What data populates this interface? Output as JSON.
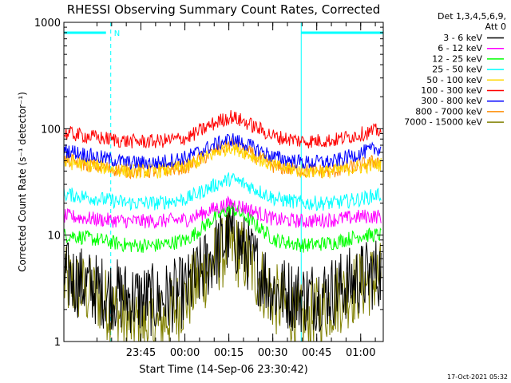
{
  "chart_data": {
    "type": "line",
    "title": "RHESSI Observing Summary Count Rates, Corrected",
    "xlabel": "Start Time (14-Sep-06 23:30:42)",
    "ylabel": "Corrected Count Rate (s⁻¹ detector⁻¹)",
    "y_scale": "log",
    "ylim": [
      1,
      1000
    ],
    "xlim_minutes": [
      -12,
      97
    ],
    "x_ticks": [
      {
        "label": "23:45",
        "minutes": 14.3
      },
      {
        "label": "00:00",
        "minutes": 29.3
      },
      {
        "label": "00:15",
        "minutes": 44.3
      },
      {
        "label": "00:30",
        "minutes": 59.3
      },
      {
        "label": "00:45",
        "minutes": 74.3
      },
      {
        "label": "01:00",
        "minutes": 89.3
      }
    ],
    "y_ticks": [
      {
        "label": "1",
        "value": 1
      },
      {
        "label": "10",
        "value": 10
      },
      {
        "label": "100",
        "value": 100
      },
      {
        "label": "1000",
        "value": 1000
      }
    ],
    "legend_header": [
      "Det 1,3,4,5,6,9,",
      "Att 0"
    ],
    "legend_position": "right",
    "night_markers": [
      {
        "label": "N",
        "start_minutes": -12,
        "end_minutes": 4
      },
      {
        "label": "",
        "start_minutes": 69,
        "end_minutes": 97
      }
    ],
    "vertical_lines_minutes": [
      -12,
      4,
      69,
      97
    ],
    "series": [
      {
        "name": "3 - 6 keV",
        "color": "#000000",
        "x": [
          -10,
          0,
          10,
          20,
          30,
          40,
          45,
          50,
          60,
          70,
          80,
          90,
          95
        ],
        "y": [
          4,
          3,
          2.6,
          2.4,
          3,
          7,
          10,
          7,
          3,
          2.6,
          3,
          4,
          4.5
        ]
      },
      {
        "name": "6 - 12 keV",
        "color": "#ff00ff",
        "x": [
          -10,
          0,
          10,
          20,
          30,
          40,
          45,
          50,
          60,
          70,
          80,
          90,
          95
        ],
        "y": [
          15,
          14,
          13.5,
          13.5,
          14,
          18,
          20,
          18,
          14,
          13.5,
          14,
          15,
          15
        ]
      },
      {
        "name": "12 - 25 keV",
        "color": "#00ff00",
        "x": [
          -10,
          0,
          10,
          20,
          30,
          40,
          45,
          50,
          60,
          70,
          80,
          90,
          95
        ],
        "y": [
          10,
          9,
          8,
          8,
          9,
          15,
          18,
          15,
          9,
          8,
          8.5,
          10,
          10
        ]
      },
      {
        "name": "25 - 50 keV",
        "color": "#00ffff",
        "x": [
          -10,
          0,
          10,
          20,
          30,
          40,
          45,
          50,
          60,
          70,
          80,
          90,
          95
        ],
        "y": [
          24,
          22,
          20,
          20,
          22,
          30,
          34,
          30,
          22,
          20,
          20,
          22,
          24
        ]
      },
      {
        "name": "50 - 100 keV",
        "color": "#ffd700",
        "x": [
          -10,
          0,
          10,
          20,
          30,
          40,
          45,
          50,
          60,
          70,
          80,
          90,
          95
        ],
        "y": [
          48,
          44,
          40,
          40,
          44,
          60,
          68,
          60,
          44,
          40,
          40,
          44,
          46
        ]
      },
      {
        "name": "100 - 300 keV",
        "color": "#ff0000",
        "x": [
          -10,
          0,
          10,
          20,
          30,
          40,
          45,
          50,
          60,
          70,
          80,
          90,
          95
        ],
        "y": [
          90,
          82,
          76,
          76,
          82,
          115,
          130,
          115,
          84,
          76,
          78,
          90,
          96
        ]
      },
      {
        "name": "300 - 800 keV",
        "color": "#0000ff",
        "x": [
          -10,
          0,
          10,
          20,
          30,
          40,
          45,
          50,
          60,
          70,
          80,
          90,
          95
        ],
        "y": [
          62,
          54,
          48,
          48,
          54,
          72,
          80,
          72,
          54,
          48,
          49,
          60,
          65
        ]
      },
      {
        "name": "800 - 7000 keV",
        "color": "#ff8c00",
        "x": [
          -10,
          0,
          10,
          20,
          30,
          40,
          45,
          50,
          60,
          70,
          80,
          90,
          95
        ],
        "y": [
          50,
          44,
          40,
          40,
          44,
          62,
          72,
          62,
          44,
          40,
          40,
          46,
          50
        ]
      },
      {
        "name": "7000 - 15000 keV",
        "color": "#808000",
        "x": [
          -10,
          0,
          10,
          20,
          30,
          40,
          45,
          50,
          60,
          70,
          80,
          90,
          95
        ],
        "y": [
          3.5,
          2.6,
          1.5,
          1.4,
          2.6,
          6,
          8,
          6,
          2.5,
          1.5,
          2.4,
          3.5,
          4
        ]
      }
    ]
  },
  "footer": {
    "timestamp": "17-Oct-2021 05:32"
  },
  "colors": {
    "axis": "#000000",
    "night_bar": "#00ffff",
    "background": "#ffffff"
  }
}
